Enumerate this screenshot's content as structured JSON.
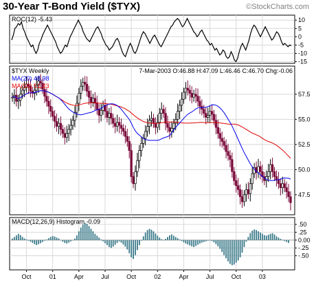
{
  "header": {
    "title": "30-Year T-Bond Yield ($TYX)",
    "brand": "©StockCharts.com"
  },
  "chart_data": [
    {
      "type": "line",
      "panel": "roc",
      "label_name": "ROC(12)",
      "label_value": "-5.43",
      "ylim": [
        -16,
        13
      ],
      "yticks": [
        "10",
        "5",
        "0",
        "-5",
        "-10",
        "-15"
      ],
      "ytick_values": [
        10,
        5,
        0,
        -5,
        -10,
        -15
      ],
      "grid": true,
      "values": [
        -2,
        1,
        5,
        6,
        8,
        7,
        9,
        5,
        3,
        0,
        -2,
        -4,
        -6,
        -5,
        -8,
        -10,
        -8,
        -4,
        -2,
        1,
        3,
        5,
        7,
        5,
        3,
        1,
        -1,
        -3,
        -6,
        -8,
        -10,
        -9,
        -7,
        -5,
        -6,
        -3,
        0,
        2,
        4,
        6,
        8,
        10,
        8,
        6,
        3,
        1,
        -1,
        -2,
        -3,
        -1,
        1,
        3,
        5,
        6,
        4,
        2,
        -1,
        -3,
        -5,
        -6,
        -8,
        -7,
        -6,
        -4,
        -2,
        -1,
        -3,
        -6,
        -9,
        -11,
        -12,
        -9,
        -6,
        -4,
        -6,
        -9,
        -10,
        -8,
        -5,
        -2,
        1,
        3,
        2,
        0,
        -2,
        -4,
        -2,
        0,
        1,
        -1,
        -3,
        -5,
        -6,
        -4,
        -2,
        0,
        2,
        4,
        6,
        7,
        9,
        10,
        11,
        10,
        8,
        6,
        7,
        9,
        11,
        9,
        7,
        5,
        3,
        2,
        0,
        1,
        3,
        4,
        2,
        0,
        -2,
        -3,
        -5,
        -4,
        -6,
        -8,
        -7,
        -9,
        -11,
        -10,
        -8,
        -9,
        -12,
        -13,
        -12,
        -9,
        -11,
        -14,
        -15,
        -13,
        -9,
        -6,
        -4,
        -6,
        -8,
        -5,
        -2,
        2,
        5,
        7,
        6,
        4,
        2,
        0,
        2,
        4,
        6,
        4,
        2,
        0,
        -2,
        -1,
        1,
        3,
        2,
        0,
        -3,
        -5,
        -4,
        -5,
        -6,
        -5,
        -5.4
      ]
    },
    {
      "type": "line",
      "panel": "price",
      "label_name": "$TYX Weekly",
      "stats": {
        "date": "7-Mar-2003",
        "open_label": "O:",
        "open": "46.88",
        "high_label": "H:",
        "high": "47.09",
        "low_label": "L:",
        "low": "46.46",
        "close_label": "C:",
        "close": "46.70",
        "change_label": "Chg:",
        "change": "-0.06"
      },
      "ylim": [
        45.5,
        60.3
      ],
      "yticks": [
        "57.5",
        "55.0",
        "52.5",
        "50.0",
        "47.5"
      ],
      "ytick_values": [
        57.5,
        55.0,
        52.5,
        50.0,
        47.5
      ],
      "grid": true,
      "legend_placement": "top-left",
      "x_tick_labels": [
        "Oct",
        "01",
        "Apr",
        "Jul",
        "Oct",
        "02",
        "Apr",
        "Jul",
        "Oct",
        "03"
      ],
      "x_tick_weeks": [
        7,
        20,
        33,
        46,
        59,
        72,
        85,
        98,
        111,
        124
      ],
      "series": [
        {
          "name": "$TYX",
          "values": [
            57.2,
            57.4,
            56.8,
            56.9,
            57.5,
            57.9,
            58.2,
            58.5,
            58.3,
            57.8,
            57.6,
            57.9,
            58.4,
            58.8,
            58.6,
            58.0,
            57.3,
            56.8,
            56.3,
            55.8,
            55.3,
            54.8,
            54.3,
            54.6,
            54.0,
            53.6,
            53.2,
            53.6,
            54.0,
            54.4,
            54.9,
            55.7,
            56.6,
            57.6,
            58.3,
            58.7,
            58.5,
            57.8,
            57.2,
            56.7,
            57.1,
            56.6,
            56.0,
            55.4,
            55.9,
            56.4,
            55.8,
            55.2,
            55.6,
            55.1,
            54.6,
            54.3,
            54.7,
            54.4,
            54.1,
            53.8,
            53.3,
            52.8,
            51.9,
            49.3,
            48.6,
            49.8,
            50.9,
            51.9,
            52.6,
            53.1,
            53.8,
            54.3,
            54.9,
            55.1,
            54.6,
            54.2,
            54.7,
            55.6,
            56.0,
            55.6,
            54.6,
            54.2,
            53.8,
            54.1,
            54.6,
            55.0,
            55.8,
            56.4,
            57.0,
            57.7,
            58.1,
            57.9,
            57.6,
            57.2,
            57.5,
            57.3,
            56.8,
            56.3,
            56.0,
            55.6,
            55.2,
            55.4,
            55.8,
            55.5,
            54.9,
            54.2,
            53.6,
            53.1,
            52.8,
            52.4,
            51.8,
            51.4,
            51.0,
            49.8,
            48.9,
            48.4,
            48.0,
            47.3,
            46.8,
            47.5,
            48.0,
            47.6,
            48.6,
            49.6,
            50.2,
            49.7,
            50.3,
            49.8,
            49.3,
            48.9,
            49.3,
            49.8,
            50.5,
            49.8,
            49.3,
            49.0,
            48.6,
            48.2,
            48.6,
            48.2,
            47.8,
            47.3,
            46.7
          ],
          "color": "#7a0a3a"
        },
        {
          "name": "MA(20)",
          "value_label": "48.98",
          "color": "#0000ee"
        },
        {
          "name": "MA(50)",
          "value_label": "51.43",
          "color": "#e00000"
        }
      ]
    },
    {
      "type": "bar",
      "panel": "macd",
      "label_name": "MACD(12,26,9) Histogram",
      "label_value": "-0.09",
      "ylim": [
        -0.95,
        0.72
      ],
      "yticks": [
        ".50",
        ".25",
        "0.00",
        "-.25",
        "-.50"
      ],
      "ytick_values": [
        0.5,
        0.25,
        0,
        -0.25,
        -0.5
      ],
      "grid": true,
      "values": [
        0.05,
        0.1,
        0.15,
        0.2,
        0.16,
        0.1,
        0.05,
        0.02,
        -0.02,
        -0.05,
        -0.09,
        -0.13,
        -0.16,
        -0.13,
        -0.1,
        -0.06,
        -0.02,
        0.02,
        0.06,
        0.1,
        0.13,
        0.11,
        0.08,
        0.05,
        0.0,
        -0.05,
        -0.09,
        -0.11,
        -0.08,
        -0.04,
        0.0,
        0.05,
        0.15,
        0.28,
        0.4,
        0.5,
        0.55,
        0.52,
        0.45,
        0.36,
        0.28,
        0.2,
        0.14,
        0.08,
        0.02,
        -0.04,
        -0.1,
        -0.16,
        -0.22,
        -0.25,
        -0.21,
        -0.15,
        -0.09,
        -0.04,
        -0.08,
        -0.14,
        -0.21,
        -0.3,
        -0.42,
        -0.55,
        -0.6,
        -0.48,
        -0.32,
        -0.16,
        -0.02,
        0.12,
        0.24,
        0.32,
        0.36,
        0.33,
        0.28,
        0.21,
        0.14,
        0.08,
        0.03,
        0.0,
        0.04,
        0.1,
        0.15,
        0.18,
        0.14,
        0.1,
        0.06,
        0.02,
        -0.03,
        -0.07,
        -0.11,
        -0.14,
        -0.17,
        -0.2,
        -0.22,
        -0.19,
        -0.15,
        -0.11,
        -0.08,
        -0.06,
        -0.04,
        -0.02,
        0.0,
        -0.03,
        -0.07,
        -0.13,
        -0.2,
        -0.28,
        -0.38,
        -0.48,
        -0.58,
        -0.68,
        -0.76,
        -0.8,
        -0.78,
        -0.72,
        -0.65,
        -0.55,
        -0.4,
        -0.22,
        -0.05,
        0.1,
        0.22,
        0.3,
        0.34,
        0.32,
        0.28,
        0.24,
        0.2,
        0.16,
        0.14,
        0.17,
        0.2,
        0.22,
        0.18,
        0.12,
        0.08,
        0.04,
        0.01,
        -0.03,
        -0.06,
        -0.09
      ]
    }
  ]
}
